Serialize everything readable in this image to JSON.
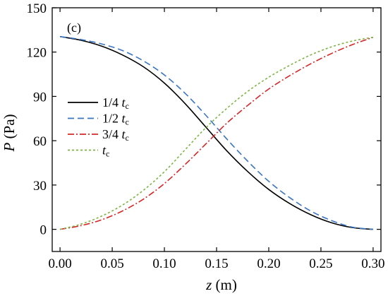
{
  "chart_data": {
    "type": "line",
    "panel_label": "(c)",
    "xlabel": {
      "var": "z",
      "unit": " (m)"
    },
    "ylabel": {
      "var": "P",
      "unit": " (Pa)"
    },
    "xlim": [
      -0.0075,
      0.3075
    ],
    "ylim": [
      -15,
      150
    ],
    "xticks": [
      0.0,
      0.05,
      0.1,
      0.15,
      0.2,
      0.25,
      0.3
    ],
    "xtick_labels": [
      "0.00",
      "0.05",
      "0.10",
      "0.15",
      "0.20",
      "0.25",
      "0.30"
    ],
    "yticks": [
      0,
      30,
      60,
      90,
      120,
      150
    ],
    "ytick_labels": [
      "0",
      "30",
      "60",
      "90",
      "120",
      "150"
    ],
    "grid": false,
    "legend_position": "center-left",
    "x": [
      0.0,
      0.02,
      0.04,
      0.06,
      0.08,
      0.1,
      0.12,
      0.14,
      0.16,
      0.18,
      0.2,
      0.22,
      0.24,
      0.26,
      0.28,
      0.3
    ],
    "series": [
      {
        "name": "1/4 t",
        "sub": "c",
        "color": "#000000",
        "dash": "",
        "values": [
          130.5,
          128,
          124,
          118,
          110,
          99,
          85,
          69,
          53,
          39,
          27,
          17.5,
          10,
          4.5,
          1.2,
          0
        ]
      },
      {
        "name": "1/2 t",
        "sub": "c",
        "color": "#3a75c4",
        "dash": "9,5",
        "values": [
          130.5,
          128.5,
          125.5,
          121,
          114,
          104.5,
          92,
          77,
          61,
          46,
          32.5,
          21.5,
          12.5,
          6,
          1.5,
          0
        ]
      },
      {
        "name": "3/4 t",
        "sub": "c",
        "color": "#d62728",
        "dash": "9,3,2,3",
        "values": [
          0,
          2.5,
          6.5,
          12.5,
          20.5,
          31,
          44,
          58,
          72,
          84,
          95,
          104,
          112,
          119,
          125,
          130
        ]
      },
      {
        "name": "t",
        "sub": "c",
        "color": "#7cb342",
        "dash": "3,3",
        "values": [
          0,
          3.5,
          9,
          16.5,
          26.5,
          39,
          54,
          69,
          82,
          93.5,
          103,
          111,
          118,
          123.5,
          127.5,
          130
        ]
      }
    ]
  }
}
